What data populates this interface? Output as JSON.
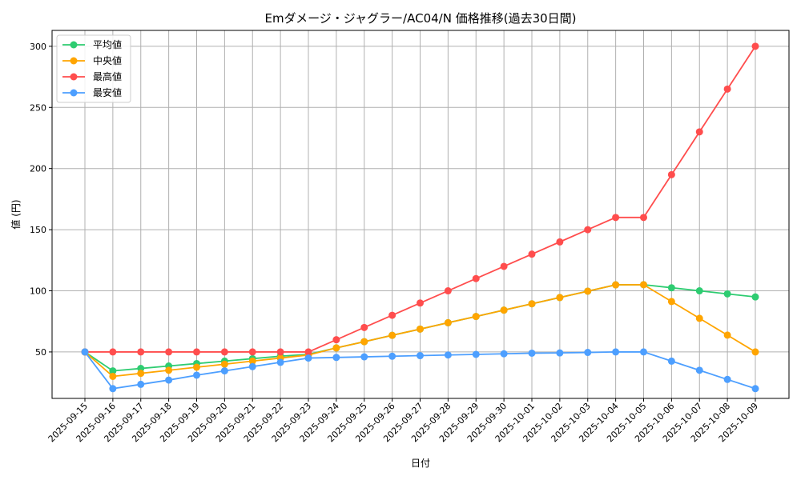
{
  "chart_data": {
    "type": "line",
    "title": "Emダメージ・ジャグラー/AC04/N 価格推移(過去30日間)",
    "xlabel": "日付",
    "ylabel": "値 (円)",
    "ylim": [
      12,
      313
    ],
    "yticks": [
      50,
      100,
      150,
      200,
      250,
      300
    ],
    "grid": true,
    "legend_position": "top-left",
    "x": [
      "2025-09-15",
      "2025-09-16",
      "2025-09-17",
      "2025-09-18",
      "2025-09-19",
      "2025-09-20",
      "2025-09-21",
      "2025-09-22",
      "2025-09-23",
      "2025-09-24",
      "2025-09-25",
      "2025-09-26",
      "2025-09-27",
      "2025-09-28",
      "2025-09-29",
      "2025-09-30",
      "2025-10-01",
      "2025-10-02",
      "2025-10-03",
      "2025-10-04",
      "2025-10-05",
      "2025-10-06",
      "2025-10-07",
      "2025-10-08",
      "2025-10-09"
    ],
    "series": [
      {
        "name": "平均値",
        "color": "#2ecc71",
        "values": [
          50,
          34.5,
          36.5,
          38.5,
          40.5,
          42.5,
          44.5,
          46.5,
          48,
          53.3,
          58.4,
          63.6,
          68.7,
          73.9,
          79,
          84.2,
          89.4,
          94.5,
          99.7,
          104.9,
          105,
          102.5,
          100,
          97.5,
          95
        ]
      },
      {
        "name": "中央値",
        "color": "#ffa500",
        "values": [
          50,
          30,
          32.5,
          35,
          37.5,
          40,
          42.5,
          45,
          47.5,
          53.3,
          58.4,
          63.6,
          68.7,
          73.9,
          79,
          84.2,
          89.4,
          94.5,
          99.7,
          104.9,
          105,
          91.25,
          77.5,
          63.75,
          50
        ]
      },
      {
        "name": "最高値",
        "color": "#ff4d4d",
        "values": [
          50,
          50,
          50,
          50,
          50,
          50,
          50,
          50,
          50,
          60,
          70,
          80,
          90,
          100,
          110,
          120,
          130,
          140,
          150,
          160,
          160,
          195,
          230,
          265,
          300
        ]
      },
      {
        "name": "最安値",
        "color": "#4d9fff",
        "values": [
          50,
          20,
          23.5,
          27,
          31,
          34.5,
          38,
          41.5,
          45,
          45.5,
          46,
          46.5,
          47,
          47.5,
          48,
          48.5,
          49,
          49.2,
          49.6,
          50,
          50,
          42.5,
          35,
          27.5,
          20
        ]
      }
    ]
  }
}
